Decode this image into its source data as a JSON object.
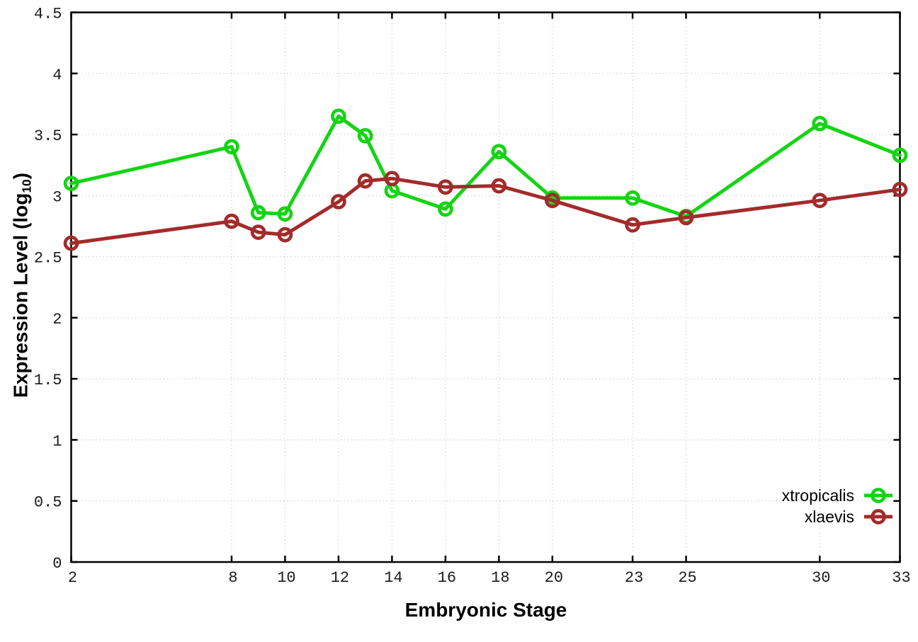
{
  "chart_data": {
    "type": "line",
    "title": "",
    "xlabel": "Embryonic Stage",
    "ylabel": "Expression Level (log10)",
    "ylabel_parts": {
      "main": "Expression Level (log",
      "sub": "10",
      "close": ")"
    },
    "x": [
      2,
      8,
      9,
      10,
      12,
      13,
      14,
      16,
      18,
      20,
      23,
      25,
      30,
      33
    ],
    "series": [
      {
        "name": "xtropicalis",
        "color": "#14d414",
        "values": [
          3.1,
          3.4,
          2.86,
          2.85,
          3.65,
          3.49,
          3.04,
          2.89,
          3.36,
          2.98,
          2.98,
          2.83,
          3.59,
          3.33
        ]
      },
      {
        "name": "xlaevis",
        "color": "#a32b2b",
        "values": [
          2.61,
          2.79,
          2.7,
          2.68,
          2.95,
          3.12,
          3.14,
          3.07,
          3.08,
          2.96,
          2.76,
          2.82,
          2.96,
          3.05
        ]
      }
    ],
    "xlim": [
      2,
      33
    ],
    "ylim": [
      0,
      4.5
    ],
    "x_ticks": [
      2,
      8,
      10,
      12,
      14,
      16,
      18,
      20,
      23,
      25,
      30,
      33
    ],
    "y_ticks": [
      "0",
      "0.5",
      "1",
      "1.5",
      "2",
      "2.5",
      "3",
      "3.5",
      "4",
      "4.5"
    ],
    "grid": true,
    "legend_position": "inside-bottom-right",
    "marker": "open-circle",
    "axis_color": "#000000",
    "grid_color": "#c9c9c9",
    "tick_label_color": "#1a1a1a"
  }
}
